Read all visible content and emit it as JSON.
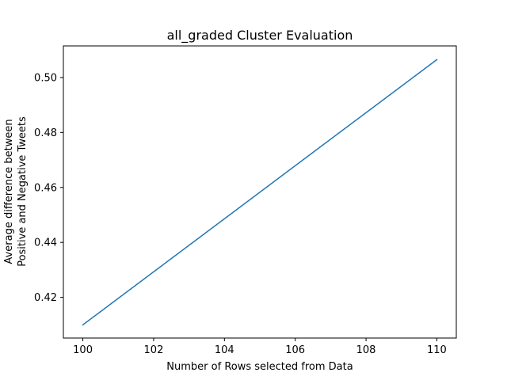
{
  "chart_data": {
    "type": "line",
    "title": "all_graded Cluster Evaluation",
    "xlabel": "Number of Rows selected from Data",
    "ylabel_lines": [
      "Average difference between",
      "Positive and Negative Tweets"
    ],
    "xlim": [
      99.45,
      110.55
    ],
    "ylim": [
      0.4052,
      0.5115
    ],
    "xticks": [
      100,
      102,
      104,
      106,
      108,
      110
    ],
    "yticks": [
      0.42,
      0.44,
      0.46,
      0.48,
      0.5
    ],
    "xtick_labels": [
      "100",
      "102",
      "104",
      "106",
      "108",
      "110"
    ],
    "ytick_labels": [
      "0.42",
      "0.44",
      "0.46",
      "0.48",
      "0.50"
    ],
    "grid": false,
    "series": [
      {
        "color": "#1f77b4",
        "x": [
          100,
          110
        ],
        "y": [
          0.41,
          0.5065
        ]
      }
    ]
  }
}
